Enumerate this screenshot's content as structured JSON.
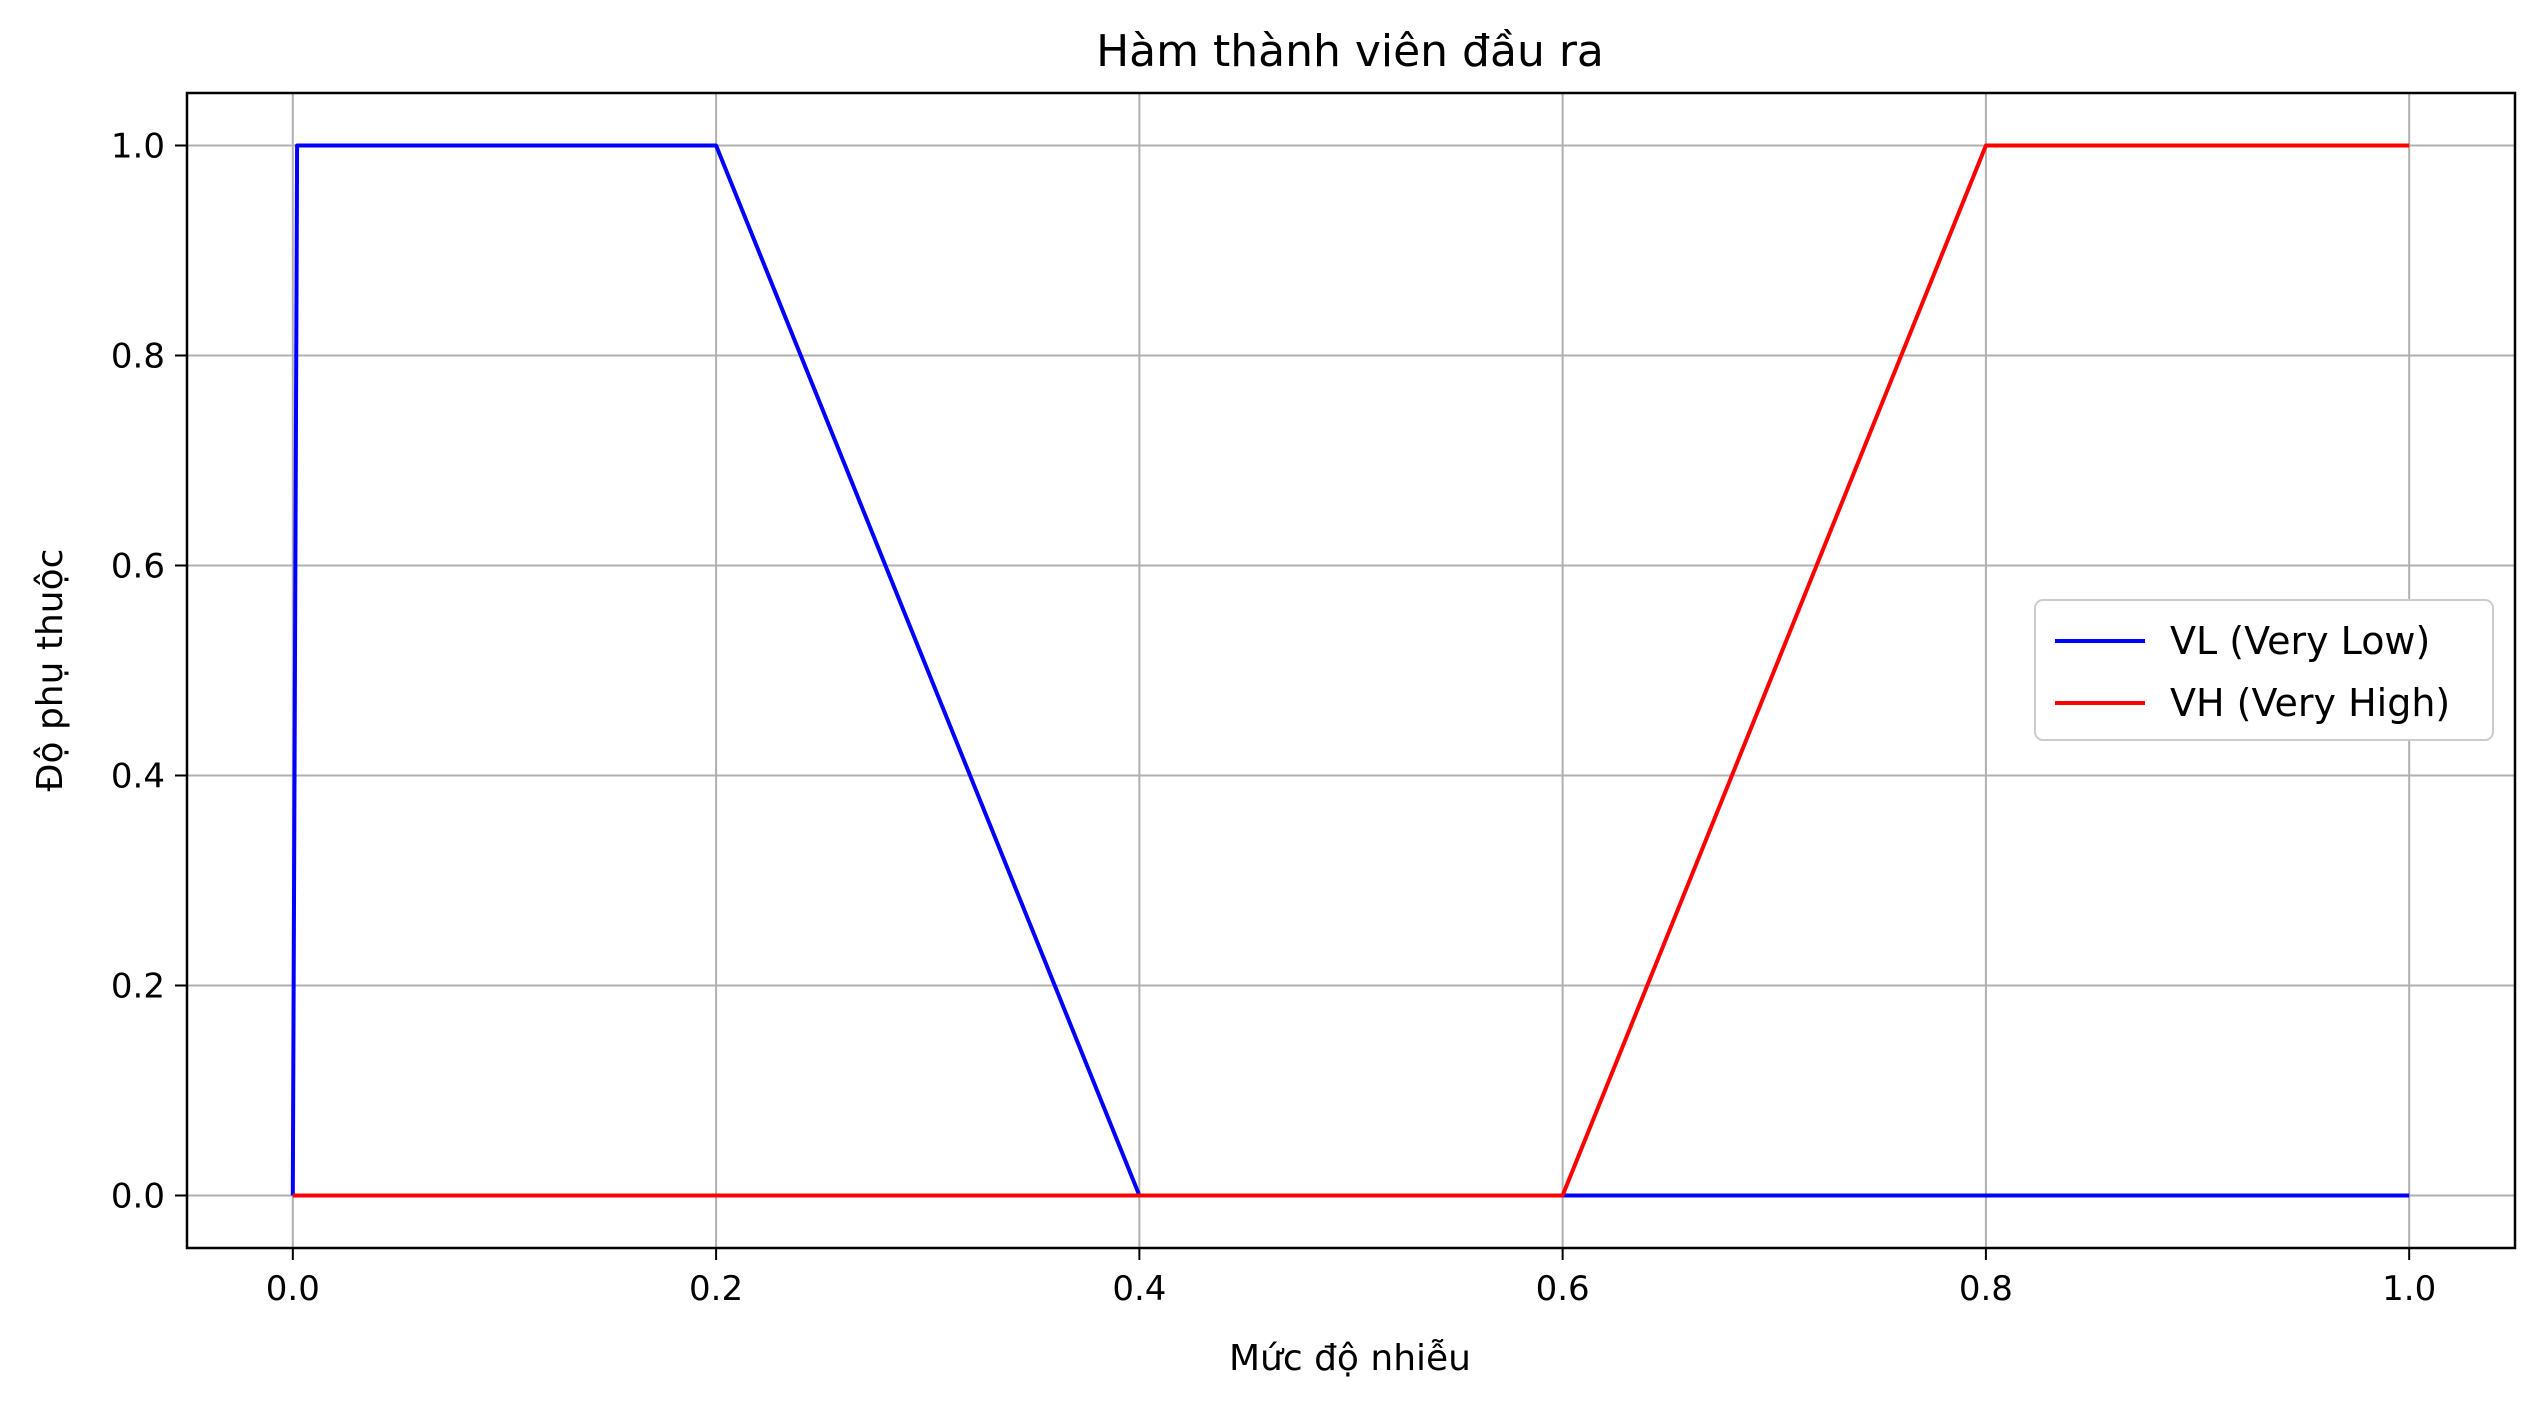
{
  "chart_data": {
    "type": "line",
    "title": "Hàm thành viên đầu ra",
    "xlabel": "Mức độ nhiễu",
    "ylabel": "Độ phụ thuộc",
    "xlim": [
      -0.05,
      1.05
    ],
    "ylim": [
      -0.05,
      1.05
    ],
    "xticks": [
      0.0,
      0.2,
      0.4,
      0.6,
      0.8,
      1.0
    ],
    "xtick_labels": [
      "0.0",
      "0.2",
      "0.4",
      "0.6",
      "0.8",
      "1.0"
    ],
    "yticks": [
      0.0,
      0.2,
      0.4,
      0.6,
      0.8,
      1.0
    ],
    "ytick_labels": [
      "0.0",
      "0.2",
      "0.4",
      "0.6",
      "0.8",
      "1.0"
    ],
    "grid": true,
    "legend_position": "center-right",
    "series": [
      {
        "name": "VL (Very Low)",
        "color": "#0000ff",
        "x": [
          0.0,
          0.002,
          0.2,
          0.4,
          0.6,
          1.0
        ],
        "y": [
          0.0,
          1.0,
          1.0,
          0.0,
          0.0,
          0.0
        ]
      },
      {
        "name": "VH (Very High)",
        "color": "#ff0000",
        "x": [
          0.0,
          0.6,
          0.8,
          1.0
        ],
        "y": [
          0.0,
          0.0,
          1.0,
          1.0
        ]
      }
    ]
  }
}
